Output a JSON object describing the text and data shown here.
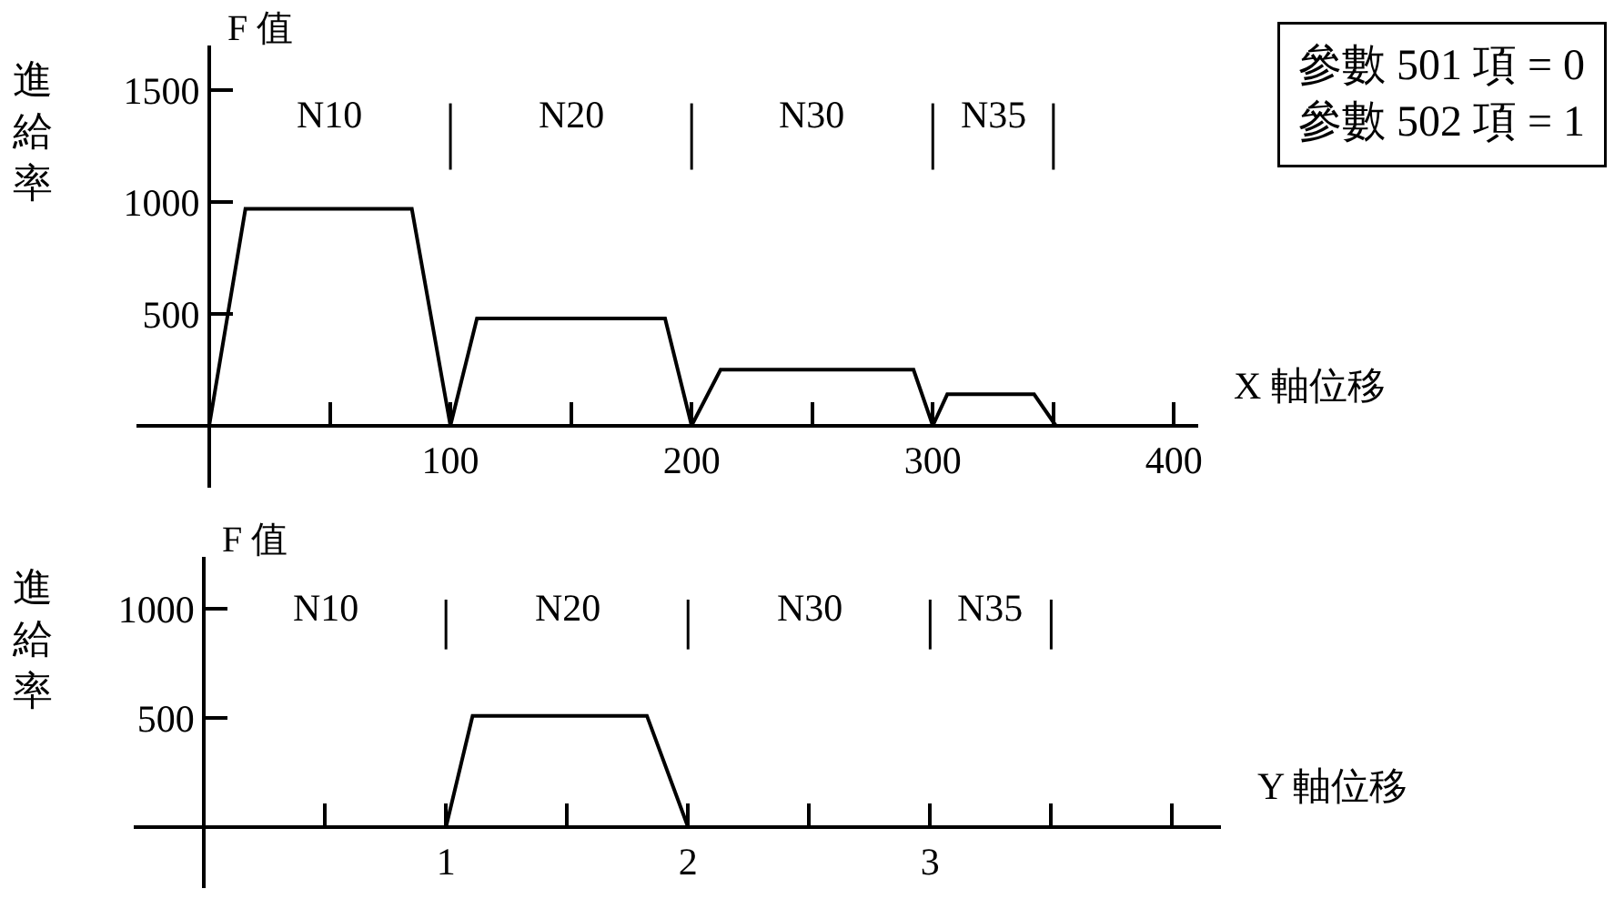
{
  "chart_data": [
    {
      "type": "line",
      "ylabel": "進給率",
      "xlabel": "X 軸位移",
      "x": [
        0,
        15,
        84,
        100,
        111,
        189,
        200,
        212,
        292,
        300,
        306,
        342,
        351
      ],
      "series": [
        {
          "color": "#000000",
          "values": [
            0,
            970,
            970,
            0,
            480,
            480,
            0,
            250,
            250,
            0,
            140,
            140,
            0
          ]
        }
      ],
      "xlim": [
        -30,
        410
      ],
      "ylim": [
        -280,
        1700
      ],
      "xticks": [
        {
          "value": 50,
          "label": null
        },
        100,
        {
          "value": 150,
          "label": null
        },
        200,
        {
          "value": 250,
          "label": null
        },
        300,
        {
          "value": 350,
          "label": null
        },
        400
      ],
      "yticks": [
        500,
        1000,
        1500
      ],
      "ref_lines": [
        {
          "axis": "x",
          "value": 100,
          "label": null
        },
        {
          "axis": "x",
          "value": 200,
          "label": null
        },
        {
          "axis": "x",
          "value": 300,
          "label": null
        },
        {
          "axis": "x",
          "value": 350,
          "label": null
        }
      ],
      "annotations": [
        "F 值",
        "N10",
        "N20",
        "N30",
        "N35",
        "參數 501 項 = 0\n參數 502 項 = 1"
      ],
      "marker": "none",
      "line_style": "solid"
    },
    {
      "type": "line",
      "ylabel": "進給率",
      "xlabel": "Y 軸位移",
      "x": [
        1,
        1.11,
        1.83,
        2
      ],
      "series": [
        {
          "color": "#000000",
          "values": [
            0,
            510,
            510,
            0
          ]
        }
      ],
      "xlim": [
        -0.29,
        4.2
      ],
      "ylim": [
        -280,
        1240
      ],
      "xticks": [
        {
          "value": 0.5,
          "label": null
        },
        1,
        {
          "value": 1.5,
          "label": null
        },
        2,
        {
          "value": 2.5,
          "label": null
        },
        3,
        {
          "value": 3.5,
          "label": null
        },
        {
          "value": 4,
          "label": null
        }
      ],
      "yticks": [
        500,
        1000
      ],
      "ref_lines": [
        {
          "axis": "x",
          "value": 1,
          "label": null
        },
        {
          "axis": "x",
          "value": 2,
          "label": null
        },
        {
          "axis": "x",
          "value": 3,
          "label": null
        },
        {
          "axis": "x",
          "value": 3.5,
          "label": null
        }
      ],
      "annotations": [
        "F 值",
        "N10",
        "N20",
        "N30",
        "N35"
      ],
      "marker": "none",
      "line_style": "solid"
    }
  ]
}
